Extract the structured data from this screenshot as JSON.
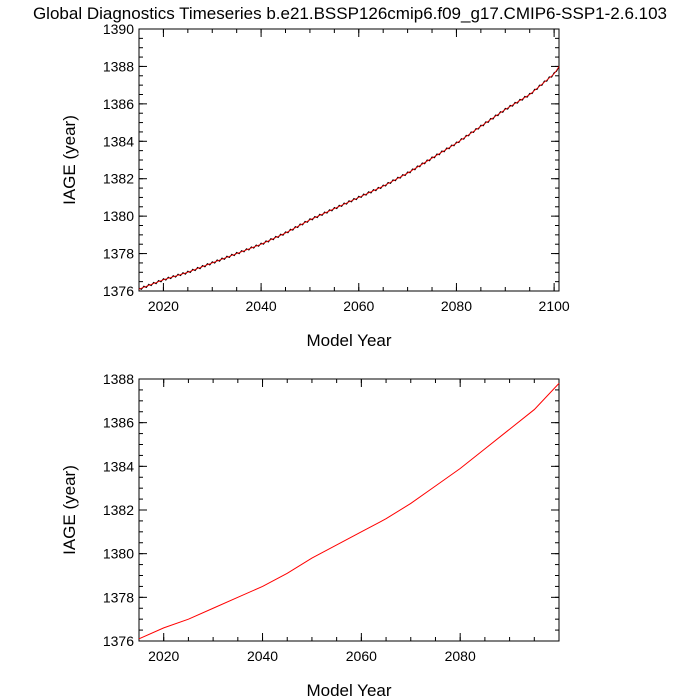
{
  "title": "Global Diagnostics Timeseries b.e21.BSSP126cmip6.f09_g17.CMIP6-SSP1-2.6.103",
  "colors": {
    "line_black": "#000000",
    "line_red": "#ff0000",
    "axis": "#000000"
  },
  "chart_data": [
    {
      "type": "line",
      "xlabel": "Model Year",
      "ylabel": "IAGE (year)",
      "xlim": [
        2015,
        2101
      ],
      "ylim": [
        1376,
        1390
      ],
      "xticks": [
        2020,
        2040,
        2060,
        2080,
        2100
      ],
      "yticks": [
        1376,
        1378,
        1380,
        1382,
        1384,
        1386,
        1388,
        1390
      ],
      "x_tick_labels": [
        "2020",
        "2040",
        "2060",
        "2080",
        "2100"
      ],
      "y_tick_labels": [
        "1376",
        "1378",
        "1380",
        "1382",
        "1384",
        "1386",
        "1388",
        "1390"
      ],
      "series": [
        {
          "style": "black monthly trace with red annual-mean overlay",
          "x": [
            2015,
            2020,
            2025,
            2030,
            2035,
            2040,
            2045,
            2050,
            2055,
            2060,
            2065,
            2070,
            2075,
            2080,
            2085,
            2090,
            2095,
            2100,
            2101
          ],
          "y": [
            1376.1,
            1376.6,
            1377.0,
            1377.5,
            1378.0,
            1378.5,
            1379.1,
            1379.8,
            1380.4,
            1381.0,
            1381.6,
            1382.3,
            1383.1,
            1383.9,
            1384.8,
            1385.7,
            1386.5,
            1387.6,
            1388.0
          ]
        }
      ]
    },
    {
      "type": "line",
      "xlabel": "Model Year",
      "ylabel": "IAGE (year)",
      "xlim": [
        2015,
        2100
      ],
      "ylim": [
        1376,
        1388
      ],
      "xticks": [
        2020,
        2040,
        2060,
        2080
      ],
      "yticks": [
        1376,
        1378,
        1380,
        1382,
        1384,
        1386,
        1388
      ],
      "x_tick_labels": [
        "2020",
        "2040",
        "2060",
        "2080"
      ],
      "y_tick_labels": [
        "1376",
        "1378",
        "1380",
        "1382",
        "1384",
        "1386",
        "1388"
      ],
      "series": [
        {
          "style": "red annual-mean line",
          "x": [
            2015,
            2020,
            2025,
            2030,
            2035,
            2040,
            2045,
            2050,
            2055,
            2060,
            2065,
            2070,
            2075,
            2080,
            2085,
            2090,
            2095,
            2100
          ],
          "y": [
            1376.1,
            1376.6,
            1377.0,
            1377.5,
            1378.0,
            1378.5,
            1379.1,
            1379.8,
            1380.4,
            1381.0,
            1381.6,
            1382.3,
            1383.1,
            1383.9,
            1384.8,
            1385.7,
            1386.6,
            1387.8
          ]
        }
      ]
    }
  ]
}
